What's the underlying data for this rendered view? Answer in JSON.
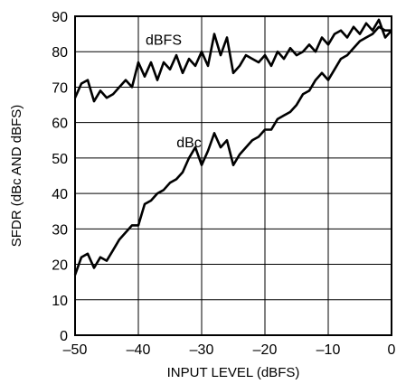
{
  "chart_data": {
    "type": "line",
    "xlabel": "INPUT LEVEL (dBFS)",
    "ylabel": "SFDR (dBc AND dBFS)",
    "xlim": [
      -50,
      0
    ],
    "ylim": [
      0,
      90
    ],
    "xticks": [
      "–50",
      "–40",
      "–30",
      "–20",
      "–10",
      "0"
    ],
    "yticks": [
      "0",
      "10",
      "20",
      "30",
      "40",
      "50",
      "60",
      "70",
      "80",
      "90"
    ],
    "grid": true,
    "series": [
      {
        "name": "dBFS",
        "label_at": [
          -36,
          82
        ],
        "x": [
          -50,
          -49,
          -48,
          -47,
          -46,
          -45,
          -44,
          -43,
          -42,
          -41,
          -40,
          -39,
          -38,
          -37,
          -36,
          -35,
          -34,
          -33,
          -32,
          -31,
          -30,
          -29,
          -28,
          -27,
          -26,
          -25,
          -24,
          -23,
          -22,
          -21,
          -20,
          -19,
          -18,
          -17,
          -16,
          -15,
          -14,
          -13,
          -12,
          -11,
          -10,
          -9,
          -8,
          -7,
          -6,
          -5,
          -4,
          -3,
          -2,
          -1,
          0
        ],
        "values": [
          67,
          71,
          72,
          66,
          69,
          67,
          68,
          70,
          72,
          70,
          77,
          73,
          77,
          72,
          77,
          75,
          79,
          74,
          78,
          76,
          80,
          76,
          85,
          79,
          84,
          74,
          76,
          79,
          78,
          77,
          79,
          76,
          80,
          78,
          81,
          79,
          80,
          82,
          80,
          84,
          82,
          85,
          86,
          84,
          87,
          85,
          88,
          86,
          89,
          84,
          86
        ]
      },
      {
        "name": "dBc",
        "label_at": [
          -32,
          53
        ],
        "x": [
          -50,
          -49,
          -48,
          -47,
          -46,
          -45,
          -44,
          -43,
          -42,
          -41,
          -40,
          -39,
          -38,
          -37,
          -36,
          -35,
          -34,
          -33,
          -32,
          -31,
          -30,
          -29,
          -28,
          -27,
          -26,
          -25,
          -24,
          -23,
          -22,
          -21,
          -20,
          -19,
          -18,
          -17,
          -16,
          -15,
          -14,
          -13,
          -12,
          -11,
          -10,
          -9,
          -8,
          -7,
          -6,
          -5,
          -4,
          -3,
          -2,
          -1,
          0
        ],
        "values": [
          17,
          22,
          23,
          19,
          22,
          21,
          24,
          27,
          29,
          31,
          31,
          37,
          38,
          40,
          41,
          43,
          44,
          46,
          50,
          53,
          48,
          52,
          57,
          53,
          55,
          48,
          51,
          53,
          55,
          56,
          58,
          58,
          61,
          62,
          63,
          65,
          68,
          69,
          72,
          74,
          72,
          75,
          78,
          79,
          81,
          83,
          84,
          85,
          87,
          86,
          86
        ]
      }
    ]
  }
}
